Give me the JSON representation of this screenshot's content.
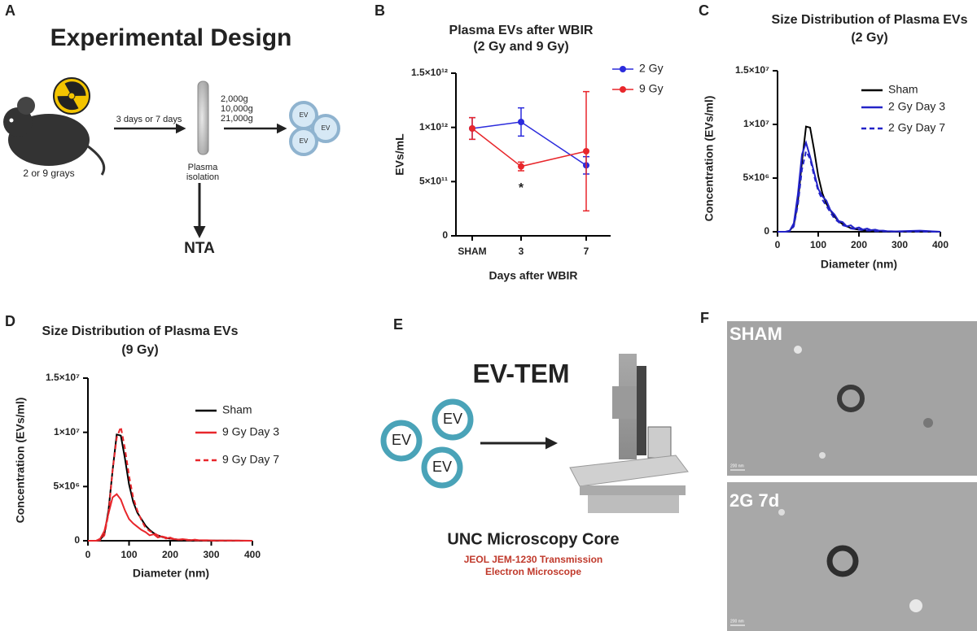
{
  "panel_labels": [
    "A",
    "B",
    "C",
    "D",
    "E",
    "F"
  ],
  "design": {
    "title": "Experimental Design",
    "dose": "2 or 9 grays",
    "time": "3 days or 7 days",
    "spins": [
      "2,000g",
      "10,000g",
      "21,000g"
    ],
    "ev": [
      "EV",
      "EV",
      "EV"
    ],
    "step": [
      "Plasma",
      "isolation"
    ],
    "assay": "NTA"
  },
  "chart_data": [
    {
      "type": "line",
      "title": [
        "Plasma EVs after WBIR",
        "(2 Gy and 9 Gy)"
      ],
      "ylabel": "EVs/mL",
      "xlabel": "Days after WBIR",
      "x": [
        0,
        3,
        7
      ],
      "xlim": [
        -1,
        8.5
      ],
      "xticks": [
        {
          "value": 0,
          "label": "SHAM"
        },
        3,
        7
      ],
      "ylim": [
        0,
        1500000000000.0
      ],
      "yticks": [
        0,
        {
          "value": 500000000000.0,
          "label": "5×10¹¹"
        },
        {
          "value": 1000000000000.0,
          "label": "1×10¹²"
        },
        {
          "value": 1500000000000.0,
          "label": "1.5×10¹²"
        }
      ],
      "markers": true,
      "annotation": "*",
      "series": [
        {
          "name": "2 Gy",
          "color": "#2b2bdc",
          "values": [
            990000000000.0,
            1050000000000.0,
            650000000000.0
          ],
          "errors": [
            100000000000.0,
            130000000000.0,
            80000000000.0
          ]
        },
        {
          "name": "9 Gy",
          "color": "#e8262b",
          "values": [
            990000000000.0,
            640000000000.0,
            780000000000.0
          ],
          "errors": [
            100000000000.0,
            40000000000.0,
            550000000000.0
          ]
        }
      ]
    },
    {
      "type": "line",
      "title": [
        "Size Distribution of Plasma EVs",
        "(2 Gy)"
      ],
      "ylabel": "Concentration (EVs/ml)",
      "xlabel": "Diameter (nm)",
      "x": [
        0,
        10,
        20,
        30,
        40,
        50,
        60,
        70,
        80,
        90,
        100,
        110,
        120,
        130,
        140,
        150,
        160,
        170,
        180,
        190,
        200,
        210,
        220,
        230,
        240,
        250,
        260,
        270,
        280,
        290,
        300,
        350,
        400
      ],
      "xlim": [
        0,
        400
      ],
      "xticks": [
        0,
        100,
        200,
        300,
        400
      ],
      "ylim": [
        0,
        15000000.0
      ],
      "yticks": [
        0,
        {
          "value": 5000000.0,
          "label": "5×10⁶"
        },
        {
          "value": 10000000.0,
          "label": "1×10⁷"
        },
        {
          "value": 15000000.0,
          "label": "1.5×10⁷"
        }
      ],
      "series": [
        {
          "name": "Sham",
          "color": "#000000",
          "style": "solid",
          "values": [
            0,
            0,
            0,
            100000.0,
            600000.0,
            2800000.0,
            6500000.0,
            9800000.0,
            9700000.0,
            7600000.0,
            5200000.0,
            3600000.0,
            2600000.0,
            2000000.0,
            1400000.0,
            1000000.0,
            700000.0,
            500000.0,
            350000.0,
            250000.0,
            200000.0,
            150000.0,
            100000.0,
            100000.0,
            80000.0,
            60000.0,
            50000.0,
            40000.0,
            30000.0,
            20000.0,
            20000.0,
            10000.0,
            0
          ]
        },
        {
          "name": "2 Gy Day 3",
          "color": "#2323c8",
          "style": "solid",
          "values": [
            0,
            0,
            0,
            100000.0,
            800000.0,
            3500000.0,
            7200000.0,
            8300000.0,
            7000000.0,
            5500000.0,
            4000000.0,
            3300000.0,
            2900000.0,
            2000000.0,
            1600000.0,
            1000000.0,
            900000.0,
            500000.0,
            600000.0,
            300000.0,
            400000.0,
            200000.0,
            300000.0,
            150000.0,
            200000.0,
            100000.0,
            100000.0,
            50000.0,
            50000.0,
            30000.0,
            50000.0,
            100000.0,
            0
          ]
        },
        {
          "name": "2 Gy Day 7",
          "color": "#2323c8",
          "style": "dashed",
          "values": [
            0,
            0,
            0,
            50000.0,
            500000.0,
            2500000.0,
            5800000.0,
            7500000.0,
            6800000.0,
            5200000.0,
            3800000.0,
            3000000.0,
            2400000.0,
            1800000.0,
            1200000.0,
            900000.0,
            600000.0,
            500000.0,
            300000.0,
            250000.0,
            200000.0,
            150000.0,
            100000.0,
            100000.0,
            50000.0,
            50000.0,
            40000.0,
            30000.0,
            20000.0,
            20000.0,
            10000.0,
            10000.0,
            0
          ]
        }
      ]
    },
    {
      "type": "line",
      "title": [
        "Size Distribution of Plasma EVs",
        "(9 Gy)"
      ],
      "ylabel": "Concentration (EVs/ml)",
      "xlabel": "Diameter (nm)",
      "x": [
        0,
        10,
        20,
        30,
        40,
        50,
        60,
        70,
        80,
        90,
        100,
        110,
        120,
        130,
        140,
        150,
        160,
        170,
        180,
        190,
        200,
        210,
        220,
        230,
        240,
        250,
        260,
        270,
        280,
        290,
        300,
        350,
        400
      ],
      "xlim": [
        0,
        400
      ],
      "xticks": [
        0,
        100,
        200,
        300,
        400
      ],
      "ylim": [
        0,
        15000000.0
      ],
      "yticks": [
        0,
        {
          "value": 5000000.0,
          "label": "5×10⁶"
        },
        {
          "value": 10000000.0,
          "label": "1×10⁷"
        },
        {
          "value": 15000000.0,
          "label": "1.5×10⁷"
        }
      ],
      "series": [
        {
          "name": "Sham",
          "color": "#000000",
          "style": "solid",
          "values": [
            0,
            0,
            0,
            100000.0,
            600000.0,
            2800000.0,
            6500000.0,
            9800000.0,
            9700000.0,
            7600000.0,
            5200000.0,
            3600000.0,
            2600000.0,
            2000000.0,
            1400000.0,
            1000000.0,
            700000.0,
            500000.0,
            350000.0,
            250000.0,
            200000.0,
            150000.0,
            100000.0,
            100000.0,
            80000.0,
            60000.0,
            50000.0,
            40000.0,
            30000.0,
            20000.0,
            20000.0,
            10000.0,
            0
          ]
        },
        {
          "name": "9 Gy Day 3",
          "color": "#e8262b",
          "style": "solid",
          "values": [
            0,
            0,
            0,
            200000.0,
            900000.0,
            2500000.0,
            4000000.0,
            4300000.0,
            3800000.0,
            2800000.0,
            2000000.0,
            1600000.0,
            1300000.0,
            1000000.0,
            800000.0,
            500000.0,
            600000.0,
            300000.0,
            400000.0,
            200000.0,
            300000.0,
            150000.0,
            100000.0,
            150000.0,
            100000.0,
            50000.0,
            100000.0,
            50000.0,
            50000.0,
            50000.0,
            30000.0,
            20000.0,
            0
          ]
        },
        {
          "name": "9 Gy Day 7",
          "color": "#e8262b",
          "style": "dashed",
          "values": [
            0,
            0,
            0,
            50000.0,
            500000.0,
            2500000.0,
            6500000.0,
            9500000.0,
            10500000.0,
            8500000.0,
            6000000.0,
            4000000.0,
            2800000.0,
            1900000.0,
            1200000.0,
            900000.0,
            700000.0,
            500000.0,
            400000.0,
            300000.0,
            200000.0,
            150000.0,
            100000.0,
            100000.0,
            50000.0,
            50000.0,
            40000.0,
            30000.0,
            20000.0,
            20000.0,
            10000.0,
            10000.0,
            0
          ]
        }
      ]
    }
  ],
  "tem": {
    "title": "EV-TEM",
    "ev": [
      "EV",
      "EV",
      "EV"
    ],
    "facility": "UNC Microscopy Core",
    "instrument": [
      "JEOL JEM-1230 Transmission",
      "Electron Microscope"
    ]
  },
  "micrographs": [
    {
      "label": "SHAM",
      "scale": "200 nm"
    },
    {
      "label": "2G 7d",
      "scale": "200 nm"
    }
  ]
}
